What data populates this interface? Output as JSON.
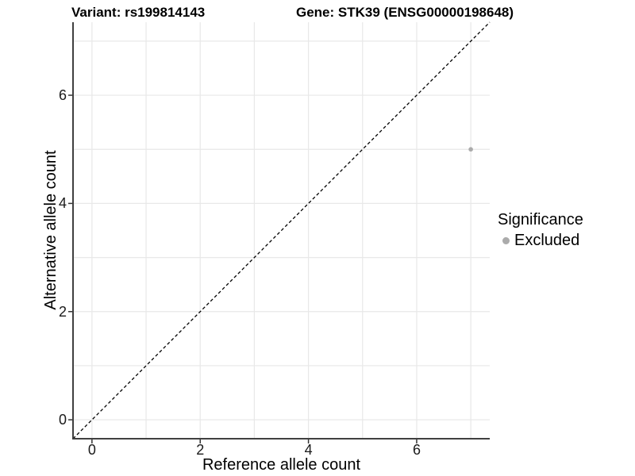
{
  "figure": {
    "title_variant": "Variant: rs199814143",
    "title_gene": "Gene: STK39 (ENSG00000198648)"
  },
  "chart_data": {
    "type": "scatter",
    "title": "Variant: rs199814143   Gene: STK39 (ENSG00000198648)",
    "xlabel": "Reference allele count",
    "ylabel": "Alternative allele count",
    "xlim": [
      -0.35,
      7.35
    ],
    "ylim": [
      -0.35,
      7.35
    ],
    "xticks": [
      0,
      2,
      4,
      6
    ],
    "yticks": [
      0,
      2,
      4,
      6
    ],
    "grid_x": [
      0,
      1,
      2,
      3,
      4,
      5,
      6,
      7
    ],
    "grid_y": [
      0,
      1,
      2,
      3,
      4,
      5,
      6,
      7
    ],
    "grid_on": true,
    "series": [
      {
        "name": "Excluded",
        "color": "#ababab",
        "points": [
          {
            "x": 7,
            "y": 5
          }
        ]
      }
    ],
    "reference_line": {
      "type": "identity",
      "slope": 1,
      "intercept": 0,
      "style": "dashed",
      "color": "#000000"
    },
    "legend": {
      "title": "Significance",
      "position": "right",
      "items": [
        {
          "label": "Excluded",
          "color": "#ababab"
        }
      ]
    },
    "colors": {
      "grid": "#e8e8e8",
      "axis": "#404040",
      "tick": "#333333",
      "background": "#ffffff"
    }
  }
}
